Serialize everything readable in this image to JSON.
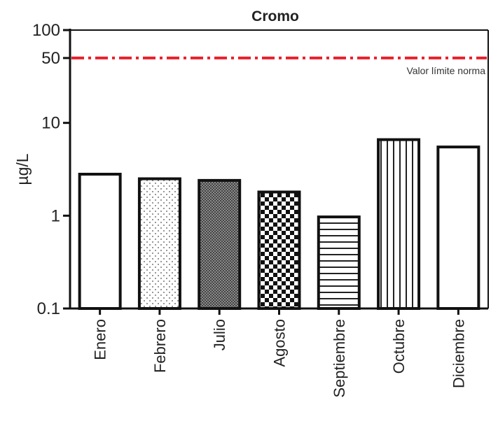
{
  "chart_data": {
    "type": "bar",
    "title": "Cromo",
    "ylabel": "µg/L",
    "xlabel": "",
    "yscale": "log",
    "ylim": [
      0.1,
      100
    ],
    "yticks": [
      0.1,
      1,
      10,
      50,
      100
    ],
    "ytick_labels": [
      "0.1",
      "1",
      "10",
      "50",
      "100"
    ],
    "categories": [
      "Enero",
      "Febrero",
      "Julio",
      "Agosto",
      "Septiembre",
      "Octubre",
      "Diciembre"
    ],
    "values": [
      2.8,
      2.5,
      2.4,
      1.8,
      0.97,
      6.6,
      5.5
    ],
    "patterns": [
      "solid-white",
      "sparse-dots",
      "dense-crosshatch",
      "checkerboard",
      "horizontal-lines",
      "vertical-lines",
      "solid-white"
    ],
    "reference_line": {
      "value": 50,
      "label": "Valor límite norma",
      "color": "#e8212b",
      "style": "dash-dot"
    },
    "grid": false,
    "legend": "none"
  }
}
